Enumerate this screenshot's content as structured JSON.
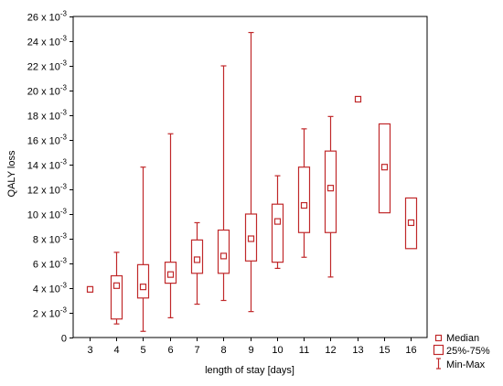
{
  "chart_data": {
    "type": "box",
    "xlabel": "length of stay [days]",
    "ylabel": "QALY loss",
    "ylim": [
      0,
      0.026
    ],
    "y_ticks": [
      {
        "value": 0,
        "label": "0",
        "exp": ""
      },
      {
        "value": 0.002,
        "label": "2 x 10",
        "exp": "-3"
      },
      {
        "value": 0.004,
        "label": "4 x 10",
        "exp": "-3"
      },
      {
        "value": 0.006,
        "label": "6 x 10",
        "exp": "-3"
      },
      {
        "value": 0.008,
        "label": "8 x 10",
        "exp": "-3"
      },
      {
        "value": 0.01,
        "label": "10 x 10",
        "exp": "-3"
      },
      {
        "value": 0.012,
        "label": "12 x 10",
        "exp": "-3"
      },
      {
        "value": 0.014,
        "label": "14 x 10",
        "exp": "-3"
      },
      {
        "value": 0.016,
        "label": "16 x 10",
        "exp": "-3"
      },
      {
        "value": 0.018,
        "label": "18 x 10",
        "exp": "-3"
      },
      {
        "value": 0.02,
        "label": "20 x 10",
        "exp": "-3"
      },
      {
        "value": 0.022,
        "label": "22 x 10",
        "exp": "-3"
      },
      {
        "value": 0.024,
        "label": "24 x 10",
        "exp": "-3"
      },
      {
        "value": 0.026,
        "label": "26 x 10",
        "exp": "-3"
      }
    ],
    "categories": [
      "3",
      "4",
      "5",
      "6",
      "7",
      "8",
      "9",
      "10",
      "11",
      "12",
      "13",
      "15",
      "16"
    ],
    "boxes": [
      {
        "category": "3",
        "median": 0.0039,
        "q1": null,
        "q3": null,
        "min": null,
        "max": null
      },
      {
        "category": "4",
        "median": 0.0042,
        "q1": 0.0015,
        "q3": 0.005,
        "min": 0.0011,
        "max": 0.0069
      },
      {
        "category": "5",
        "median": 0.0041,
        "q1": 0.0032,
        "q3": 0.0059,
        "min": 0.0005,
        "max": 0.0138
      },
      {
        "category": "6",
        "median": 0.0051,
        "q1": 0.0044,
        "q3": 0.0061,
        "min": 0.0016,
        "max": 0.0165
      },
      {
        "category": "7",
        "median": 0.0063,
        "q1": 0.0052,
        "q3": 0.0079,
        "min": 0.0027,
        "max": 0.0093
      },
      {
        "category": "8",
        "median": 0.0066,
        "q1": 0.0052,
        "q3": 0.0087,
        "min": 0.003,
        "max": 0.022
      },
      {
        "category": "9",
        "median": 0.008,
        "q1": 0.0062,
        "q3": 0.01,
        "min": 0.0021,
        "max": 0.0247
      },
      {
        "category": "10",
        "median": 0.0094,
        "q1": 0.0061,
        "q3": 0.0108,
        "min": 0.0056,
        "max": 0.0131
      },
      {
        "category": "11",
        "median": 0.0107,
        "q1": 0.0085,
        "q3": 0.0138,
        "min": 0.0065,
        "max": 0.0169
      },
      {
        "category": "12",
        "median": 0.0121,
        "q1": 0.0085,
        "q3": 0.0151,
        "min": 0.0049,
        "max": 0.0179
      },
      {
        "category": "13",
        "median": 0.0193,
        "q1": null,
        "q3": null,
        "min": null,
        "max": null
      },
      {
        "category": "15",
        "median": 0.0138,
        "q1": 0.0101,
        "q3": 0.0173,
        "min": null,
        "max": null
      },
      {
        "category": "16",
        "median": 0.0093,
        "q1": 0.0072,
        "q3": 0.0113,
        "min": null,
        "max": null
      }
    ],
    "legend": {
      "placement": "bottom-right",
      "entries": [
        {
          "label": "Median",
          "marker": "small-square"
        },
        {
          "label": "25%-75%",
          "marker": "box"
        },
        {
          "label": "Min-Max",
          "marker": "whisker"
        }
      ]
    },
    "grid": false,
    "color": "#c0282a"
  }
}
